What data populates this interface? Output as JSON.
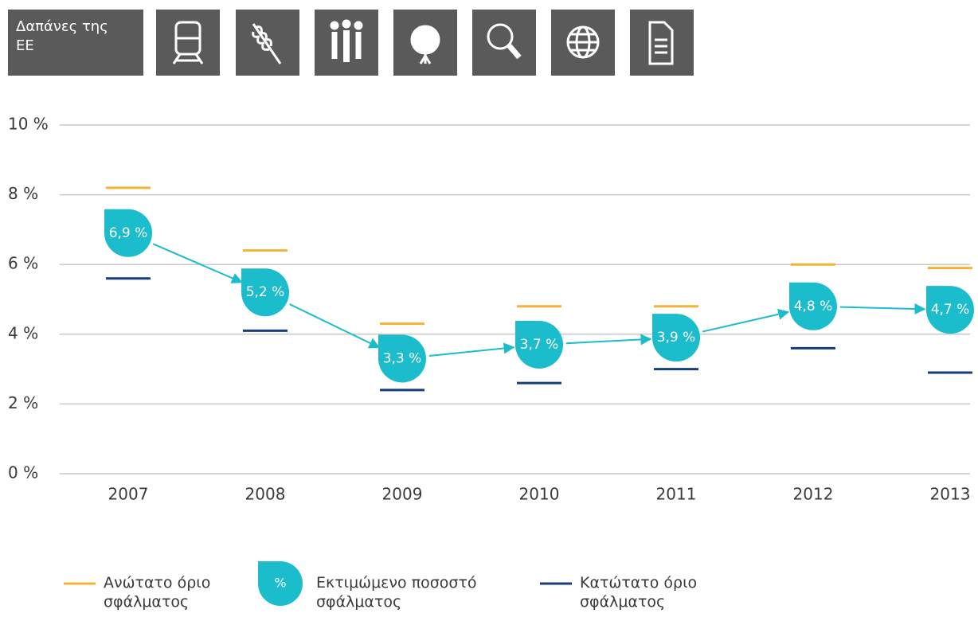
{
  "nav": {
    "title": "Δαπάνες της ΕΕ"
  },
  "chart_data": {
    "type": "line",
    "categories": [
      "2007",
      "2008",
      "2009",
      "2010",
      "2011",
      "2012",
      "2013"
    ],
    "series": [
      {
        "name": "Ανώτατο όριο σφάλματος",
        "color": "#f5b335",
        "values": [
          8.2,
          6.4,
          4.3,
          4.8,
          4.8,
          6.0,
          5.9
        ]
      },
      {
        "name": "Εκτιμώμενο ποσοστό σφάλματος",
        "color": "#1bbccc",
        "values": [
          6.9,
          5.2,
          3.3,
          3.7,
          3.9,
          4.8,
          4.7
        ],
        "value_labels": [
          "6,9 %",
          "5,2 %",
          "3,3 %",
          "3,7 %",
          "3,9 %",
          "4,8 %",
          "4,7 %"
        ]
      },
      {
        "name": "Κατώτατο όριο σφάλματος",
        "color": "#143f7a",
        "values": [
          5.6,
          4.1,
          2.4,
          2.6,
          3.0,
          3.6,
          2.9
        ]
      }
    ],
    "legend_marker_label": "%",
    "ylim": [
      0,
      10
    ],
    "yticks": [
      {
        "value": 0,
        "label": "0 %"
      },
      {
        "value": 2,
        "label": "2 %"
      },
      {
        "value": 4,
        "label": "4 %"
      },
      {
        "value": 6,
        "label": "6 %"
      },
      {
        "value": 8,
        "label": "8 %"
      },
      {
        "value": 10,
        "label": "10 %"
      }
    ],
    "grid": true
  }
}
